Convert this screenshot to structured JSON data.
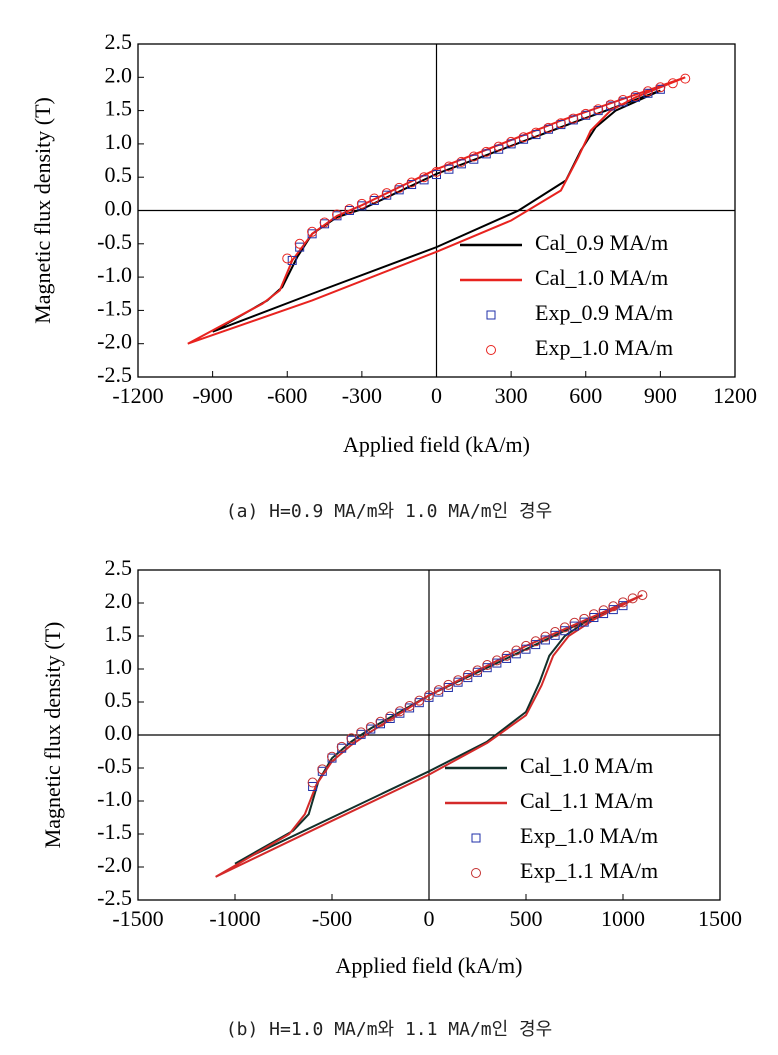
{
  "chart_data": [
    {
      "type": "line",
      "caption": "(a) H=0.9 MA/m와 1.0 MA/m인 경우",
      "xlabel": "Applied field (kA/m)",
      "ylabel": "Magnetic flux density (T)",
      "xlim": [
        -1200,
        1200
      ],
      "xticks": [
        -1200,
        -900,
        -600,
        -300,
        0,
        300,
        600,
        900,
        1200
      ],
      "ylim": [
        -2.5,
        2.5
      ],
      "yticks": [
        2.5,
        {
          "value": 2,
          "label": "2.0"
        },
        1.5,
        {
          "value": 1,
          "label": "1.0"
        },
        0.5,
        {
          "value": 0,
          "label": "0.0"
        },
        -0.5,
        {
          "value": -1,
          "label": "-1.0"
        },
        -1.5,
        {
          "value": -2,
          "label": "-2.0"
        },
        -2.5
      ],
      "zero_lines": true,
      "legend": "lower right",
      "series": [
        {
          "name": "Cal_0.9 MA/m",
          "style": "line",
          "color": "#000000",
          "x": [
            -900,
            -500,
            0,
            330,
            520,
            580,
            640,
            720,
            900,
            500,
            0,
            -300,
            -400,
            -500,
            -560,
            -620,
            -680,
            -900
          ],
          "values": [
            -1.82,
            -1.25,
            -0.55,
            0.0,
            0.45,
            0.9,
            1.25,
            1.5,
            1.8,
            1.25,
            0.55,
            0.02,
            -0.1,
            -0.35,
            -0.7,
            -1.15,
            -1.35,
            -1.82
          ]
        },
        {
          "name": "Cal_1.0 MA/m",
          "style": "line",
          "color": "#e8231f",
          "x": [
            -1000,
            -500,
            0,
            300,
            500,
            570,
            620,
            700,
            800,
            1000,
            500,
            0,
            -300,
            -400,
            -500,
            -580,
            -630,
            -700,
            -1000
          ],
          "values": [
            -2.0,
            -1.35,
            -0.62,
            -0.15,
            0.3,
            0.8,
            1.2,
            1.5,
            1.7,
            2.0,
            1.35,
            0.62,
            0.08,
            -0.08,
            -0.35,
            -0.75,
            -1.2,
            -1.4,
            -2.0
          ]
        },
        {
          "name": "Exp_0.9 MA/m",
          "style": "square",
          "color": "#1f2fa8",
          "x": [
            -580,
            -550,
            -500,
            -450,
            -400,
            -350,
            -300,
            -250,
            -200,
            -150,
            -100,
            -50,
            0,
            50,
            100,
            150,
            200,
            250,
            300,
            350,
            400,
            450,
            500,
            550,
            600,
            650,
            700,
            750,
            800,
            850,
            900
          ],
          "values": [
            -0.75,
            -0.55,
            -0.35,
            -0.2,
            -0.08,
            0.0,
            0.07,
            0.15,
            0.23,
            0.31,
            0.39,
            0.46,
            0.54,
            0.62,
            0.7,
            0.77,
            0.85,
            0.92,
            1.0,
            1.07,
            1.14,
            1.22,
            1.29,
            1.36,
            1.43,
            1.5,
            1.57,
            1.63,
            1.7,
            1.76,
            1.82
          ]
        },
        {
          "name": "Exp_1.0 MA/m",
          "style": "circle",
          "color": "#e8231f",
          "x": [
            -600,
            -550,
            -500,
            -450,
            -400,
            -350,
            -300,
            -250,
            -200,
            -150,
            -100,
            -50,
            0,
            50,
            100,
            150,
            200,
            250,
            300,
            350,
            400,
            450,
            500,
            550,
            600,
            650,
            700,
            750,
            800,
            850,
            900,
            950,
            1000
          ],
          "values": [
            -0.72,
            -0.5,
            -0.32,
            -0.18,
            -0.06,
            0.02,
            0.1,
            0.18,
            0.26,
            0.34,
            0.42,
            0.5,
            0.58,
            0.66,
            0.73,
            0.81,
            0.88,
            0.96,
            1.03,
            1.1,
            1.17,
            1.24,
            1.31,
            1.38,
            1.45,
            1.52,
            1.59,
            1.66,
            1.72,
            1.79,
            1.85,
            1.91,
            1.98
          ]
        }
      ]
    },
    {
      "type": "line",
      "caption": "(b) H=1.0 MA/m와 1.1 MA/m인 경우",
      "xlabel": "Applied field (kA/m)",
      "ylabel": "Magnetic flux density (T)",
      "xlim": [
        -1500,
        1500
      ],
      "xticks": [
        -1500,
        -1000,
        -500,
        0,
        500,
        1000,
        1500
      ],
      "ylim": [
        -2.5,
        2.5
      ],
      "yticks": [
        2.5,
        {
          "value": 2,
          "label": "2.0"
        },
        1.5,
        {
          "value": 1,
          "label": "1.0"
        },
        0.5,
        {
          "value": 0,
          "label": "0.0"
        },
        -0.5,
        {
          "value": -1,
          "label": "-1.0"
        },
        -1.5,
        {
          "value": -2,
          "label": "-2.0"
        },
        -2.5
      ],
      "zero_lines": true,
      "legend": "lower right",
      "series": [
        {
          "name": "Cal_1.0 MA/m",
          "style": "line",
          "color": "#12302a",
          "x": [
            -1000,
            -500,
            0,
            300,
            500,
            570,
            620,
            700,
            800,
            1000,
            500,
            0,
            -300,
            -400,
            -500,
            -570,
            -620,
            -700,
            -1000
          ],
          "values": [
            -1.95,
            -1.25,
            -0.55,
            -0.1,
            0.35,
            0.8,
            1.2,
            1.5,
            1.7,
            2.0,
            1.3,
            0.6,
            0.1,
            -0.1,
            -0.35,
            -0.7,
            -1.2,
            -1.45,
            -1.95
          ]
        },
        {
          "name": "Cal_1.1 MA/m",
          "style": "line",
          "color": "#d42a2a",
          "x": [
            -1100,
            -500,
            0,
            300,
            500,
            580,
            640,
            720,
            850,
            1100,
            500,
            0,
            -300,
            -400,
            -500,
            -580,
            -640,
            -720,
            -1100
          ],
          "values": [
            -2.15,
            -1.3,
            -0.6,
            -0.12,
            0.3,
            0.75,
            1.2,
            1.5,
            1.75,
            2.12,
            1.35,
            0.6,
            0.05,
            -0.15,
            -0.4,
            -0.75,
            -1.2,
            -1.5,
            -2.15
          ]
        },
        {
          "name": "Exp_1.0 MA/m",
          "style": "square",
          "color": "#1f2fa8",
          "x": [
            -600,
            -550,
            -500,
            -450,
            -400,
            -350,
            -300,
            -250,
            -200,
            -150,
            -100,
            -50,
            0,
            50,
            100,
            150,
            200,
            250,
            300,
            350,
            400,
            450,
            500,
            550,
            600,
            650,
            700,
            750,
            800,
            850,
            900,
            950,
            1000
          ],
          "values": [
            -0.78,
            -0.55,
            -0.35,
            -0.2,
            -0.08,
            0.01,
            0.09,
            0.17,
            0.25,
            0.33,
            0.41,
            0.49,
            0.57,
            0.65,
            0.72,
            0.8,
            0.87,
            0.95,
            1.02,
            1.09,
            1.16,
            1.23,
            1.3,
            1.37,
            1.44,
            1.51,
            1.58,
            1.65,
            1.71,
            1.78,
            1.84,
            1.9,
            1.96
          ]
        },
        {
          "name": "Exp_1.1 MA/m",
          "style": "circle",
          "color": "#c43030",
          "x": [
            -600,
            -550,
            -500,
            -450,
            -400,
            -350,
            -300,
            -250,
            -200,
            -150,
            -100,
            -50,
            0,
            50,
            100,
            150,
            200,
            250,
            300,
            350,
            400,
            450,
            500,
            550,
            600,
            650,
            700,
            750,
            800,
            850,
            900,
            950,
            1000,
            1050,
            1100
          ],
          "values": [
            -0.72,
            -0.52,
            -0.33,
            -0.18,
            -0.05,
            0.04,
            0.12,
            0.2,
            0.28,
            0.36,
            0.44,
            0.52,
            0.6,
            0.68,
            0.76,
            0.83,
            0.91,
            0.98,
            1.06,
            1.13,
            1.2,
            1.28,
            1.35,
            1.42,
            1.49,
            1.56,
            1.63,
            1.7,
            1.76,
            1.83,
            1.89,
            1.95,
            2.01,
            2.07,
            2.12
          ]
        }
      ]
    }
  ]
}
